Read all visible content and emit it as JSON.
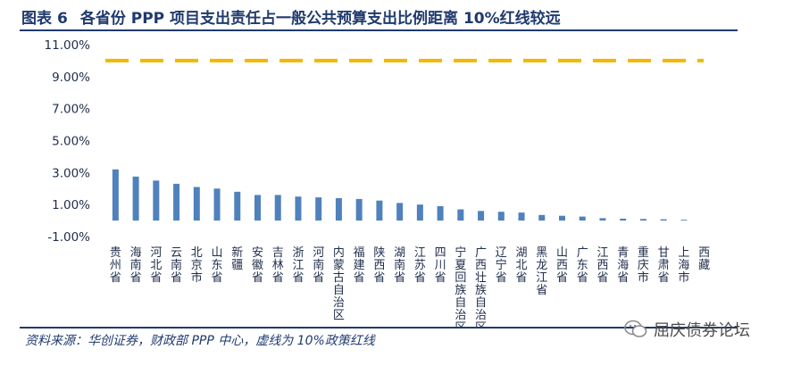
{
  "figure": {
    "label": "图表",
    "number": "6",
    "title": "各省份 PPP 项目支出责任占一般公共预算支出比例距离 10%红线较远"
  },
  "source_note": "资料来源：华创证券，财政部 PPP 中心，虚线为 10%政策红线",
  "watermark": "屈庆债券论坛",
  "colors": {
    "bar": "#4f81bd",
    "threshold_line": "#f2b705",
    "title": "#1f3a6e"
  },
  "chart_data": {
    "type": "bar",
    "categories": [
      "贵州省",
      "海南省",
      "河北省",
      "云南省",
      "北京市",
      "山东省",
      "新疆",
      "安徽省",
      "吉林省",
      "浙江省",
      "河南省",
      "内蒙古自治区",
      "福建省",
      "陕西省",
      "湖南省",
      "江苏省",
      "四川省",
      "宁夏回族自治区",
      "广西壮族自治区",
      "辽宁省",
      "湖北省",
      "黑龙江省",
      "山西省",
      "广东省",
      "江西省",
      "青海省",
      "重庆市",
      "甘肃省",
      "上海市",
      "西藏"
    ],
    "values": [
      3.2,
      2.75,
      2.5,
      2.3,
      2.1,
      2.0,
      1.8,
      1.6,
      1.6,
      1.5,
      1.45,
      1.4,
      1.35,
      1.25,
      1.1,
      1.0,
      0.9,
      0.7,
      0.6,
      0.55,
      0.5,
      0.35,
      0.3,
      0.25,
      0.15,
      0.12,
      0.1,
      0.08,
      0.05,
      0.0
    ],
    "unit": "%",
    "ylim": [
      -1,
      11
    ],
    "yticks": [
      "11.00%",
      "9.00%",
      "7.00%",
      "5.00%",
      "3.00%",
      "1.00%",
      "-1.00%"
    ],
    "ytick_values": [
      11,
      9,
      7,
      5,
      3,
      1,
      -1
    ],
    "reference_line": {
      "value": 10,
      "style": "dashed"
    },
    "grid": false,
    "legend": "none"
  }
}
